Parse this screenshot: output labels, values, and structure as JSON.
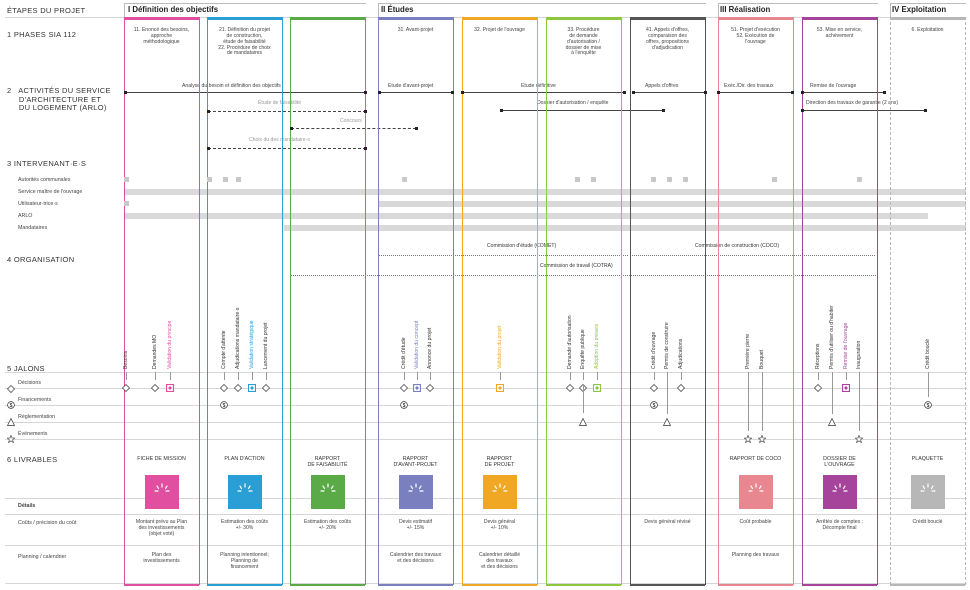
{
  "header": {
    "etapes_label": "ÉTAPES DU PROJET",
    "phases": [
      {
        "name": "I Définition des objectifs",
        "color": "#e04fa0"
      },
      {
        "name": "II Études",
        "color": "#7a7fc0"
      },
      {
        "name": "III Réalisation",
        "color": "#e88790"
      },
      {
        "name": "IV Exploitation",
        "color": "#b7b7b7"
      }
    ]
  },
  "sections": {
    "s1": "1   PHASES SIA 112",
    "s2": "2   ACTIVITÉS DU SERVICE\n     D'ARCHITECTURE ET\n     DU LOGEMENT (ARLO)",
    "s3": "3   INTERVENANT·E·S",
    "s4": "4   ORGANISATION",
    "s5": "5   JALONS",
    "s6": "6   LIVRABLES"
  },
  "columns": [
    {
      "key": "c1",
      "color": "#e04fa0",
      "sia": "11. Enoncé des besoins,\napproche\nméthodologique"
    },
    {
      "key": "c2",
      "color": "#2a9fd6",
      "sia": "21. Définition du projet\nde construction,\nétude de faisabilité\n22. Procédure de choix\nde mandataires"
    },
    {
      "key": "c3",
      "color": "#5aab48",
      "sia": ""
    },
    {
      "key": "c4",
      "color": "#7a7fc0",
      "sia": "31. Avant-projet"
    },
    {
      "key": "c5",
      "color": "#f0a824",
      "sia": "32. Projet de l'ouvrage"
    },
    {
      "key": "c6",
      "color": "#8dc63f",
      "sia": "33. Procédure\nde demande\nd'autorisation /\ndossier de mise\nà l'enquête"
    },
    {
      "key": "c7",
      "color": "#555555",
      "sia": "41. Appels d'offres,\ncomparaison des\noffres, propositions\nd'adjudication"
    },
    {
      "key": "c8",
      "color": "#e88790",
      "sia": "51. Projet d'exécution\n52. Exécution de\nl'ouvrage"
    },
    {
      "key": "c9",
      "color": "#a5449a",
      "sia": "53. Mise en service,\nachèvement"
    },
    {
      "key": "c10",
      "color": "#b7b7b7",
      "sia": "6. Exploitation"
    }
  ],
  "activities": {
    "a1": "Analyse du besoin et définition des objectifs",
    "a2": "Étude de faisabilité",
    "a3": "Concours",
    "a4": "Choix du des mandataire·s",
    "a5": "Etude d'avant-projet",
    "a6": "Etude définitive",
    "a7": "Dossier d'autorisation / enquête",
    "a8": "Appels d'offres",
    "a9": "Exéc./Dir. des travaux",
    "a10": "Remise de l'ouvrage",
    "a11": "Direction des travaux de garantie (2 ans)"
  },
  "intervenants": [
    "Autorités communales",
    "Service maître de l'ouvrage",
    "Utilisateur·trice·s",
    "ARLO",
    "Mandataires"
  ],
  "organisation": {
    "comet": "Commission d'étude (COMET)",
    "coco": "Commission de construction (COCO)",
    "cotra": "Commission de travail (COTRA)"
  },
  "jalons": {
    "c1": [
      "Besoins",
      "Demandes MO",
      "Validation du principe"
    ],
    "c2": [
      "Compte d'attente",
      "Adjudications mandataire·s",
      "Validation stratégique",
      "Lancement du projet"
    ],
    "c4": [
      "Crédit d'étude",
      "Validation du concept",
      "Annonce du projet"
    ],
    "c5": [
      "Validation du projet"
    ],
    "c6": [
      "Demande d'autorisation",
      "Enquête publique",
      "Adoption du préavis"
    ],
    "c7": [
      "Crédit d'ouvrage",
      "Permis de construire",
      "Adjudications"
    ],
    "c8": [
      "Première pierre",
      "Bouquet"
    ],
    "c9": [
      "Réceptions",
      "Permis d'utiliser ou d'habiter",
      "Remise de l'ouvrage",
      "Inauguration"
    ],
    "c10": [
      "Crédit bouclé"
    ]
  },
  "legend": {
    "decisions": "Décisions",
    "financements": "Financements",
    "reglementation": "Réglementation",
    "evenements": "Événements"
  },
  "livrables": [
    {
      "col": "c1",
      "title": "FICHE DE MISSION",
      "color": "#e04fa0"
    },
    {
      "col": "c2",
      "title": "PLAN D'ACTION",
      "color": "#2a9fd6"
    },
    {
      "col": "c3",
      "title": "RAPPORT\nDE FAISABILITÉ",
      "color": "#5aab48"
    },
    {
      "col": "c4",
      "title": "RAPPORT\nD'AVANT-PROJET",
      "color": "#7a7fc0"
    },
    {
      "col": "c5",
      "title": "RAPPORT\nDE PROJET",
      "color": "#f0a824"
    },
    {
      "col": "c8",
      "title": "RAPPORT DE COCO",
      "color": "#e88790"
    },
    {
      "col": "c9",
      "title": "DOSSIER DE\nL'OUVRAGE",
      "color": "#a5449a"
    },
    {
      "col": "c10",
      "title": "PLAQUETTE",
      "color": "#b7b7b7"
    }
  ],
  "details": {
    "label": "Détails",
    "couts_label": "Coûts / précision du coût",
    "planning_label": "Planning / calendrier",
    "couts": {
      "c1": "Montant prévu au Plan\ndes investissements\n(objet voté)",
      "c2": "Estimation des coûts\n+/- 30%",
      "c3": "Estimation des coûts\n+/- 20%",
      "c4": "Devis estimatif\n+/- 15%",
      "c5": "Devis général\n+/- 10%",
      "c7": "Devis général révisé",
      "c8": "Coût probable",
      "c9": "Arrêtés de comptes ;\nDécompte final",
      "c10": "Crédit bouclé"
    },
    "planning": {
      "c1": "Plan des\ninvestissements",
      "c2": "Planning intentionnel;\nPlanning de\nfinancement",
      "c4": "Calendrier des travaux\net des décisions",
      "c5": "Calendrier détaillé\ndes travaux\net des décisions",
      "c8": "Planning des travaux"
    }
  }
}
